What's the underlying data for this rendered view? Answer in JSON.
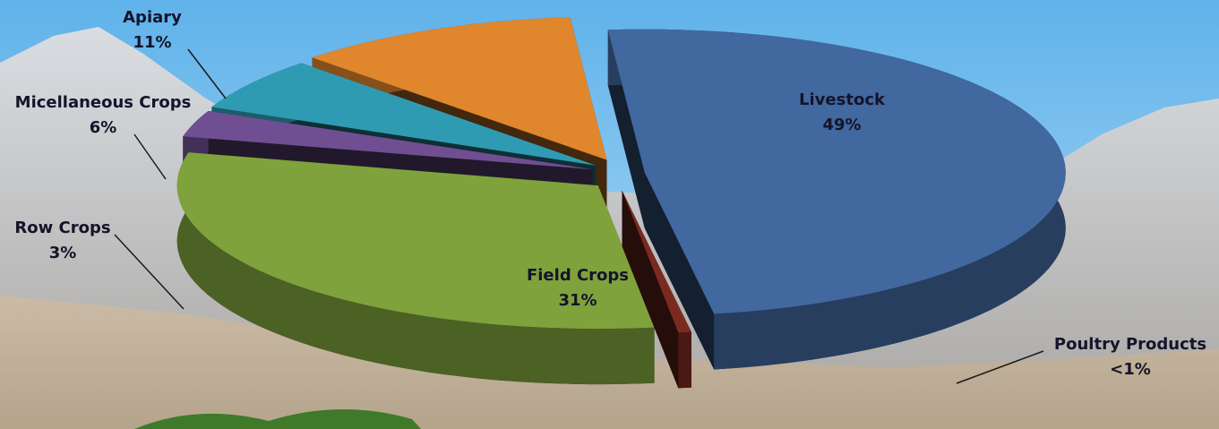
{
  "chart_data": {
    "type": "pie",
    "categories": [
      "Livestock",
      "Poultry Products",
      "Field Crops",
      "Row Crops",
      "Micellaneous Crops",
      "Apiary"
    ],
    "values": [
      49,
      0.5,
      31,
      3,
      6,
      11
    ],
    "value_labels": [
      "49%",
      "<1%",
      "31%",
      "3%",
      "6%",
      "11%"
    ],
    "colors": [
      "#41689f",
      "#7b2a22",
      "#7fa23c",
      "#6f4f92",
      "#2f9bb2",
      "#e0862c"
    ]
  }
}
